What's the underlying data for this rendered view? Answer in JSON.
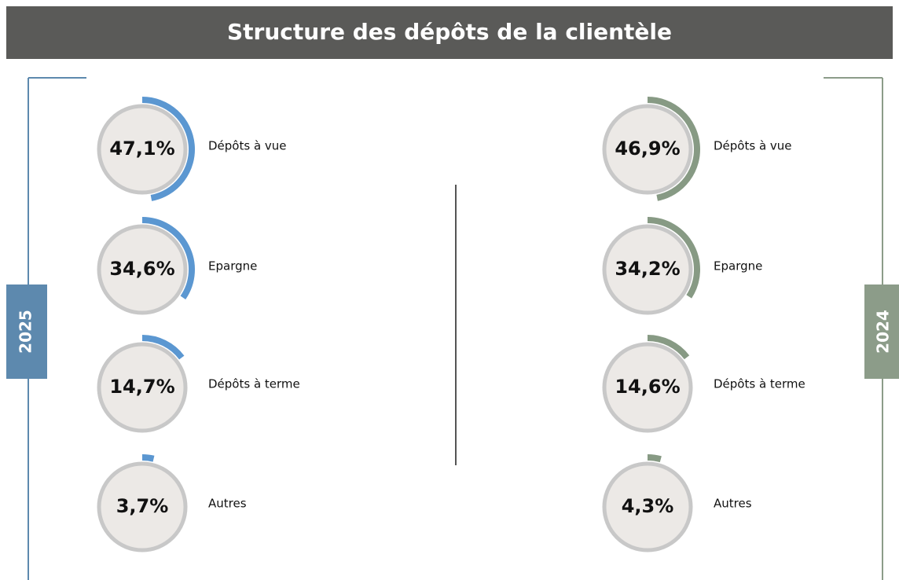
{
  "title": "Structure des dépôts de la clientèle",
  "chart_data": [
    {
      "type": "radial",
      "title": "2025",
      "color": "#5b97d1",
      "frame_color": "#5d89ae",
      "categories": [
        "Dépôts à vue",
        "Epargne",
        "Dépôts à terme",
        "Autres"
      ],
      "values": [
        47.1,
        34.6,
        14.7,
        3.7
      ],
      "value_labels": [
        "47,1%",
        "34,6%",
        "14,7%",
        "3,7%"
      ]
    },
    {
      "type": "radial",
      "title": "2024",
      "color": "#879a84",
      "frame_color": "#8c9c89",
      "categories": [
        "Dépôts à vue",
        "Epargne",
        "Dépôts à terme",
        "Autres"
      ],
      "values": [
        46.9,
        34.2,
        14.6,
        4.3
      ],
      "value_labels": [
        "46,9%",
        "34,2%",
        "14,6%",
        "4,3%"
      ]
    }
  ]
}
